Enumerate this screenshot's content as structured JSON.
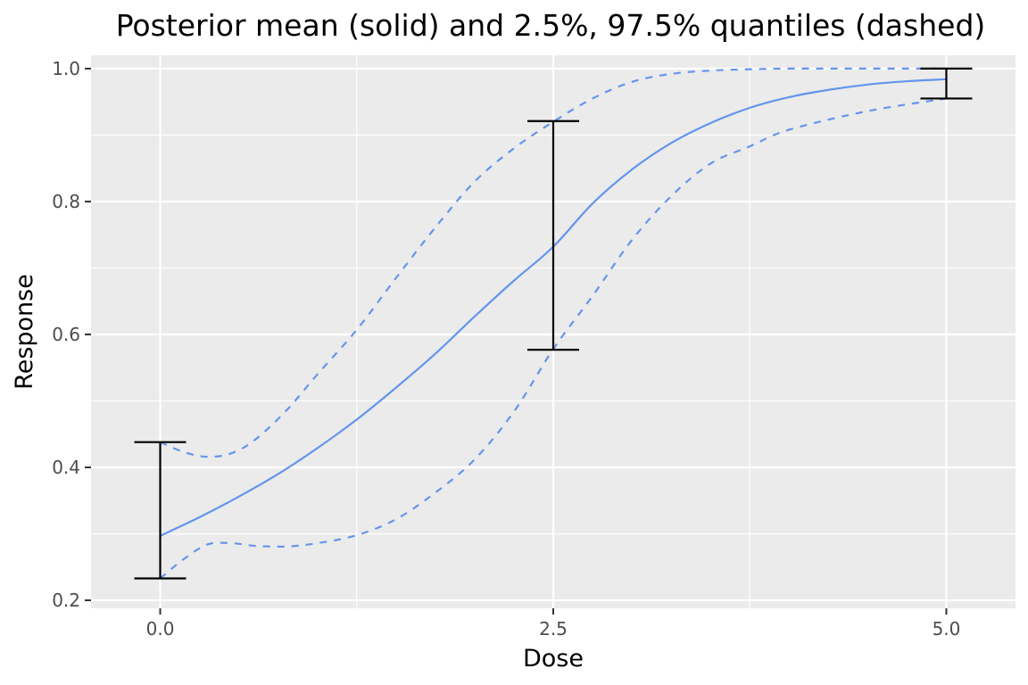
{
  "chart_data": {
    "type": "line",
    "title": "Posterior mean (solid) and 2.5%, 97.5% quantiles (dashed)",
    "xlabel": "Dose",
    "ylabel": "Response",
    "xlim": [
      -0.44,
      5.44
    ],
    "ylim": [
      0.188,
      1.02
    ],
    "x_ticks": [
      0.0,
      2.5,
      5.0
    ],
    "x_tick_labels": [
      "0.0",
      "2.5",
      "5.0"
    ],
    "y_ticks": [
      0.2,
      0.4,
      0.6,
      0.8,
      1.0
    ],
    "y_tick_labels": [
      "0.2",
      "0.4",
      "0.6",
      "0.8",
      "1.0"
    ],
    "grid": true,
    "colors": {
      "panel_background": "#ebebeb",
      "grid_major": "#ffffff",
      "curves": "#6495ed",
      "error_bars": "#000000"
    },
    "series": [
      {
        "style": "solid",
        "x": [
          0.0,
          0.25,
          0.5,
          0.75,
          1.0,
          1.25,
          1.5,
          1.75,
          2.0,
          2.25,
          2.5,
          2.75,
          3.0,
          3.25,
          3.5,
          3.75,
          4.0,
          4.25,
          4.5,
          4.75,
          5.0
        ],
        "y": [
          0.297,
          0.325,
          0.356,
          0.39,
          0.429,
          0.472,
          0.52,
          0.571,
          0.627,
          0.681,
          0.732,
          0.797,
          0.848,
          0.888,
          0.918,
          0.941,
          0.957,
          0.968,
          0.976,
          0.981,
          0.984
        ]
      },
      {
        "style": "dashed",
        "x": [
          0.0,
          0.15,
          0.3,
          0.45,
          0.6,
          0.8,
          1.0,
          1.25,
          1.5,
          1.75,
          2.0,
          2.25,
          2.5,
          2.75,
          3.0,
          3.25,
          3.5,
          3.75,
          4.0,
          4.5,
          5.0
        ],
        "y": [
          0.438,
          0.423,
          0.416,
          0.421,
          0.441,
          0.485,
          0.54,
          0.607,
          0.685,
          0.761,
          0.83,
          0.88,
          0.92,
          0.955,
          0.98,
          0.992,
          0.997,
          0.999,
          1.0,
          1.0,
          1.0
        ]
      },
      {
        "style": "dashed",
        "x": [
          0.0,
          0.15,
          0.3,
          0.45,
          0.6,
          0.8,
          1.0,
          1.25,
          1.5,
          1.75,
          2.0,
          2.25,
          2.5,
          2.75,
          3.0,
          3.25,
          3.5,
          3.75,
          4.0,
          4.5,
          5.0
        ],
        "y": [
          0.233,
          0.262,
          0.284,
          0.286,
          0.282,
          0.281,
          0.286,
          0.298,
          0.322,
          0.362,
          0.412,
          0.484,
          0.578,
          0.658,
          0.742,
          0.808,
          0.857,
          0.883,
          0.908,
          0.936,
          0.955
        ]
      }
    ],
    "error_bars": [
      {
        "x": 0.0,
        "low": 0.233,
        "high": 0.438
      },
      {
        "x": 2.5,
        "low": 0.577,
        "high": 0.921
      },
      {
        "x": 5.0,
        "low": 0.955,
        "high": 1.0
      }
    ]
  }
}
